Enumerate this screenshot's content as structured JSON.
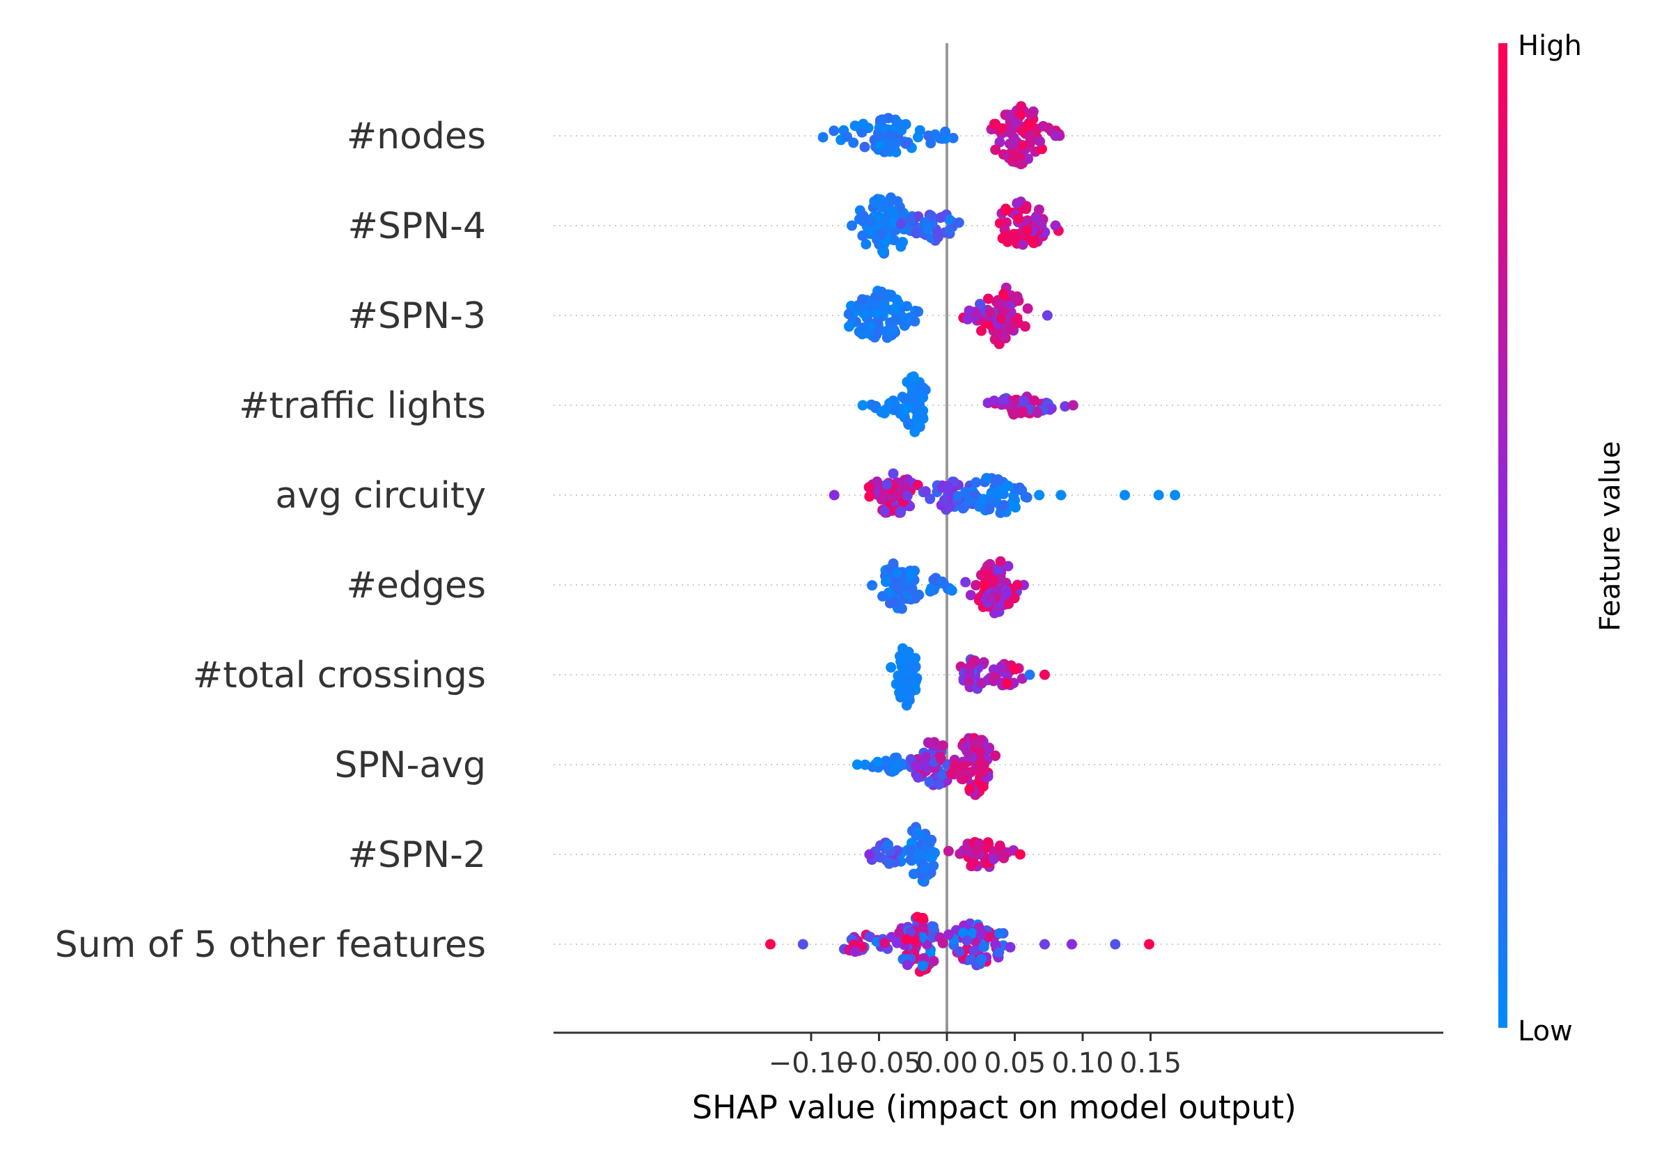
{
  "chart_data": {
    "type": "scatter",
    "subtype": "shap-beeswarm",
    "title": "",
    "xlabel": "SHAP value (impact on model output)",
    "ylabel": "",
    "xlim": [
      -0.145,
      0.183
    ],
    "xticks": [
      -0.1,
      -0.05,
      0.0,
      0.05,
      0.1,
      0.15
    ],
    "xtick_labels": [
      "−0.10",
      "−0.05",
      "0.00",
      "0.05",
      "0.10",
      "0.15"
    ],
    "zero_line": 0.0,
    "grid": "dotted horizontal row guides",
    "colorbar": {
      "label": "Feature value",
      "high_label": "High",
      "low_label": "Low",
      "high_color": "#ff0052",
      "mid_color": "#8a2be2",
      "low_color": "#008bfb"
    },
    "features": [
      {
        "name": "#nodes",
        "clusters": [
          {
            "center": -0.045,
            "spread": 0.035,
            "count": 60,
            "color_low": 0.0,
            "color_high": 0.2,
            "height": 0.6
          },
          {
            "center": 0.055,
            "spread": 0.02,
            "count": 75,
            "color_low": 0.55,
            "color_high": 1.0,
            "height": 1.0
          },
          {
            "center": 0.0,
            "spread": 0.008,
            "count": 4,
            "color_low": 0.0,
            "color_high": 0.1,
            "height": 0.2
          }
        ],
        "outliers": [
          [
            0.083,
            0.7
          ],
          [
            0.08,
            0.6
          ]
        ]
      },
      {
        "name": "#SPN-4",
        "clusters": [
          {
            "center": -0.045,
            "spread": 0.02,
            "count": 80,
            "color_low": 0.0,
            "color_high": 0.15,
            "height": 1.0
          },
          {
            "center": -0.01,
            "spread": 0.02,
            "count": 30,
            "color_low": 0.05,
            "color_high": 0.4,
            "height": 0.5
          },
          {
            "center": 0.055,
            "spread": 0.02,
            "count": 60,
            "color_low": 0.5,
            "color_high": 1.0,
            "height": 0.8
          }
        ],
        "outliers": [
          [
            -0.07,
            0.1
          ],
          [
            0.08,
            0.6
          ]
        ]
      },
      {
        "name": "#SPN-3",
        "clusters": [
          {
            "center": -0.05,
            "spread": 0.025,
            "count": 85,
            "color_low": 0.0,
            "color_high": 0.15,
            "height": 0.8
          },
          {
            "center": 0.04,
            "spread": 0.016,
            "count": 75,
            "color_low": 0.45,
            "color_high": 1.0,
            "height": 1.0
          },
          {
            "center": 0.025,
            "spread": 0.012,
            "count": 15,
            "color_low": 0.3,
            "color_high": 0.9,
            "height": 0.4
          }
        ],
        "outliers": [
          [
            0.074,
            0.4
          ]
        ]
      },
      {
        "name": "#traffic lights",
        "clusters": [
          {
            "center": -0.025,
            "spread": 0.01,
            "count": 55,
            "color_low": 0.0,
            "color_high": 0.1,
            "height": 1.0
          },
          {
            "center": -0.045,
            "spread": 0.01,
            "count": 15,
            "color_low": 0.0,
            "color_high": 0.1,
            "height": 0.3
          },
          {
            "center": 0.055,
            "spread": 0.02,
            "count": 55,
            "color_low": 0.2,
            "color_high": 1.0,
            "height": 0.35
          }
        ],
        "outliers": [
          [
            -0.062,
            0.0
          ],
          [
            0.093,
            0.7
          ]
        ]
      },
      {
        "name": "avg circuity",
        "clusters": [
          {
            "center": -0.04,
            "spread": 0.02,
            "count": 70,
            "color_low": 0.35,
            "color_high": 1.0,
            "height": 0.7
          },
          {
            "center": 0.005,
            "spread": 0.02,
            "count": 45,
            "color_low": 0.1,
            "color_high": 0.5,
            "height": 0.55
          },
          {
            "center": 0.035,
            "spread": 0.02,
            "count": 45,
            "color_low": 0.0,
            "color_high": 0.2,
            "height": 0.7
          }
        ],
        "outliers": [
          [
            0.084,
            0.0
          ],
          [
            0.131,
            0.0
          ],
          [
            0.156,
            0.0
          ],
          [
            0.168,
            0.0
          ],
          [
            -0.083,
            0.5
          ],
          [
            0.068,
            0.0
          ]
        ]
      },
      {
        "name": "#edges",
        "clusters": [
          {
            "center": -0.035,
            "spread": 0.015,
            "count": 60,
            "color_low": 0.0,
            "color_high": 0.2,
            "height": 0.8
          },
          {
            "center": 0.035,
            "spread": 0.015,
            "count": 70,
            "color_low": 0.4,
            "color_high": 1.0,
            "height": 1.0
          },
          {
            "center": -0.005,
            "spread": 0.012,
            "count": 15,
            "color_low": 0.0,
            "color_high": 0.2,
            "height": 0.3
          }
        ],
        "outliers": [
          [
            0.052,
            0.9
          ]
        ]
      },
      {
        "name": "#total crossings",
        "clusters": [
          {
            "center": -0.03,
            "spread": 0.008,
            "count": 65,
            "color_low": 0.0,
            "color_high": 0.1,
            "height": 1.0
          },
          {
            "center": 0.02,
            "spread": 0.012,
            "count": 30,
            "color_low": 0.2,
            "color_high": 0.8,
            "height": 0.6
          },
          {
            "center": 0.045,
            "spread": 0.012,
            "count": 25,
            "color_low": 0.5,
            "color_high": 1.0,
            "height": 0.4
          }
        ],
        "outliers": [
          [
            0.072,
            0.95
          ],
          [
            0.061,
            0.1
          ]
        ]
      },
      {
        "name": "SPN-avg",
        "clusters": [
          {
            "center": -0.04,
            "spread": 0.015,
            "count": 20,
            "color_low": 0.0,
            "color_high": 0.15,
            "height": 0.25
          },
          {
            "center": -0.01,
            "spread": 0.015,
            "count": 50,
            "color_low": 0.2,
            "color_high": 0.8,
            "height": 0.8
          },
          {
            "center": 0.02,
            "spread": 0.015,
            "count": 70,
            "color_low": 0.5,
            "color_high": 1.0,
            "height": 1.0
          }
        ],
        "outliers": [
          [
            -0.066,
            0.0
          ]
        ]
      },
      {
        "name": "#SPN-2",
        "clusters": [
          {
            "center": -0.02,
            "spread": 0.012,
            "count": 60,
            "color_low": 0.0,
            "color_high": 0.2,
            "height": 1.0
          },
          {
            "center": -0.045,
            "spread": 0.01,
            "count": 20,
            "color_low": 0.1,
            "color_high": 0.5,
            "height": 0.4
          },
          {
            "center": 0.025,
            "spread": 0.018,
            "count": 50,
            "color_low": 0.55,
            "color_high": 1.0,
            "height": 0.5
          }
        ],
        "outliers": [
          [
            0.054,
            1.0
          ],
          [
            -0.057,
            0.5
          ]
        ]
      },
      {
        "name": "Sum of 5 other features",
        "clusters": [
          {
            "center": -0.02,
            "spread": 0.02,
            "count": 70,
            "color_low": 0.0,
            "color_high": 1.0,
            "height": 0.9
          },
          {
            "center": 0.02,
            "spread": 0.025,
            "count": 60,
            "color_low": 0.0,
            "color_high": 1.0,
            "height": 0.7
          },
          {
            "center": -0.06,
            "spread": 0.02,
            "count": 25,
            "color_low": 0.0,
            "color_high": 1.0,
            "height": 0.3
          }
        ],
        "outliers": [
          [
            -0.13,
            1.0
          ],
          [
            -0.106,
            0.3
          ],
          [
            0.124,
            0.3
          ],
          [
            0.149,
            1.0
          ],
          [
            0.092,
            0.5
          ],
          [
            0.072,
            0.4
          ]
        ]
      }
    ]
  }
}
